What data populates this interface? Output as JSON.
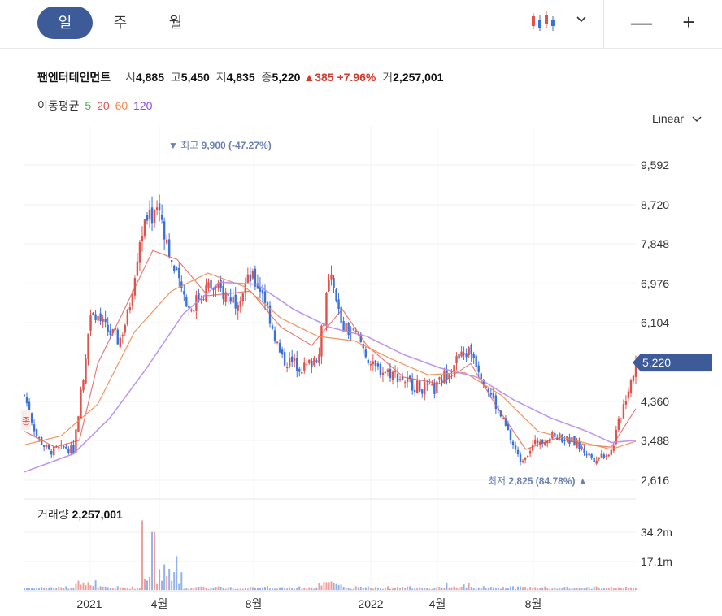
{
  "tabs": [
    {
      "label": "일",
      "active": true
    },
    {
      "label": "주",
      "active": false
    },
    {
      "label": "월",
      "active": false
    }
  ],
  "toolbar": {
    "chart_type_icon": "candlestick-icon",
    "dropdown_icon": "chevron-down-icon",
    "zoom_out": "—",
    "zoom_in": "+"
  },
  "stock": {
    "name": "팬엔터테인먼트",
    "open_label": "시",
    "open": "4,885",
    "high_label": "고",
    "high": "5,450",
    "low_label": "저",
    "low": "4,835",
    "close_label": "종",
    "close": "5,220",
    "change_arrow": "▲",
    "change": "385",
    "change_pct": "+7.96%",
    "volume_label": "거",
    "volume": "2,257,001"
  },
  "moving_average": {
    "label": "이동평균",
    "periods": [
      {
        "label": "5",
        "color": "#4caf50"
      },
      {
        "label": "20",
        "color": "#e0524a"
      },
      {
        "label": "60",
        "color": "#f0884a"
      },
      {
        "label": "120",
        "color": "#8e4cd8"
      }
    ]
  },
  "scale_mode": "Linear",
  "colors": {
    "up": "#e0524a",
    "down": "#3b72d8",
    "accent": "#3d5a99",
    "marker": "#6b7fb0"
  },
  "chart_data": {
    "type": "candlestick",
    "y_ticks": [
      "9,592",
      "8,720",
      "7,848",
      "6,976",
      "6,104",
      "4,360",
      "3,488",
      "2,616"
    ],
    "ylim": [
      2616,
      9900
    ],
    "x_tick_labels": [
      "2021",
      "4월",
      "8월",
      "2022",
      "4월",
      "8월"
    ],
    "current_price_label": "5,220",
    "current_price": 5220,
    "high_marker": {
      "prefix": "최고",
      "value": "9,900",
      "pct": "(-47.27%)",
      "arrow": "▼",
      "price": 9900
    },
    "low_marker": {
      "prefix": "최저",
      "value": "2,825",
      "pct": "(84.78%)",
      "arrow": "▲",
      "price": 2825
    },
    "left_axis_tag": "종",
    "close_path": [
      [
        0,
        4500
      ],
      [
        0.02,
        3600
      ],
      [
        0.04,
        3250
      ],
      [
        0.07,
        3350
      ],
      [
        0.08,
        3250
      ],
      [
        0.095,
        4800
      ],
      [
        0.11,
        6500
      ],
      [
        0.13,
        6000
      ],
      [
        0.155,
        5700
      ],
      [
        0.17,
        6300
      ],
      [
        0.19,
        8100
      ],
      [
        0.22,
        8700
      ],
      [
        0.245,
        7200
      ],
      [
        0.27,
        6400
      ],
      [
        0.3,
        6900
      ],
      [
        0.32,
        6800
      ],
      [
        0.345,
        6600
      ],
      [
        0.37,
        7100
      ],
      [
        0.39,
        6800
      ],
      [
        0.42,
        5300
      ],
      [
        0.46,
        5100
      ],
      [
        0.48,
        5400
      ],
      [
        0.5,
        7100
      ],
      [
        0.52,
        6000
      ],
      [
        0.545,
        5800
      ],
      [
        0.57,
        5100
      ],
      [
        0.6,
        5000
      ],
      [
        0.64,
        4700
      ],
      [
        0.67,
        4600
      ],
      [
        0.7,
        5200
      ],
      [
        0.73,
        5500
      ],
      [
        0.76,
        4600
      ],
      [
        0.79,
        3700
      ],
      [
        0.81,
        3050
      ],
      [
        0.84,
        3500
      ],
      [
        0.87,
        3600
      ],
      [
        0.9,
        3450
      ],
      [
        0.93,
        3100
      ],
      [
        0.96,
        3250
      ],
      [
        0.98,
        4300
      ],
      [
        1,
        5220
      ]
    ],
    "ma_paths": [
      {
        "name": "20",
        "points": [
          [
            0,
            3700
          ],
          [
            0.05,
            3350
          ],
          [
            0.09,
            3500
          ],
          [
            0.12,
            5200
          ],
          [
            0.16,
            6300
          ],
          [
            0.21,
            7700
          ],
          [
            0.25,
            7500
          ],
          [
            0.3,
            6700
          ],
          [
            0.37,
            6800
          ],
          [
            0.42,
            6000
          ],
          [
            0.47,
            5600
          ],
          [
            0.52,
            6400
          ],
          [
            0.56,
            5600
          ],
          [
            0.62,
            4900
          ],
          [
            0.68,
            4750
          ],
          [
            0.73,
            5200
          ],
          [
            0.77,
            4300
          ],
          [
            0.82,
            3300
          ],
          [
            0.87,
            3550
          ],
          [
            0.92,
            3400
          ],
          [
            0.96,
            3350
          ],
          [
            1,
            4200
          ]
        ]
      },
      {
        "name": "60",
        "points": [
          [
            0,
            3400
          ],
          [
            0.06,
            3600
          ],
          [
            0.12,
            4300
          ],
          [
            0.18,
            5900
          ],
          [
            0.24,
            6800
          ],
          [
            0.3,
            7200
          ],
          [
            0.36,
            6900
          ],
          [
            0.42,
            6200
          ],
          [
            0.48,
            5800
          ],
          [
            0.54,
            5700
          ],
          [
            0.6,
            5300
          ],
          [
            0.66,
            4950
          ],
          [
            0.72,
            5000
          ],
          [
            0.78,
            4500
          ],
          [
            0.84,
            3700
          ],
          [
            0.9,
            3500
          ],
          [
            0.96,
            3300
          ],
          [
            1,
            3480
          ]
        ]
      },
      {
        "name": "120",
        "points": [
          [
            0,
            2800
          ],
          [
            0.08,
            3200
          ],
          [
            0.14,
            4000
          ],
          [
            0.2,
            5100
          ],
          [
            0.26,
            6300
          ],
          [
            0.32,
            7000
          ],
          [
            0.38,
            6950
          ],
          [
            0.44,
            6400
          ],
          [
            0.5,
            6000
          ],
          [
            0.56,
            5800
          ],
          [
            0.62,
            5400
          ],
          [
            0.68,
            5100
          ],
          [
            0.74,
            4900
          ],
          [
            0.8,
            4400
          ],
          [
            0.86,
            4000
          ],
          [
            0.92,
            3700
          ],
          [
            0.96,
            3450
          ],
          [
            1,
            3500
          ]
        ]
      }
    ],
    "volume": {
      "label": "거래량",
      "value": "2,257,001",
      "y_ticks": [
        "34.2m",
        "17.1m"
      ],
      "ylim": [
        0,
        40
      ]
    }
  }
}
